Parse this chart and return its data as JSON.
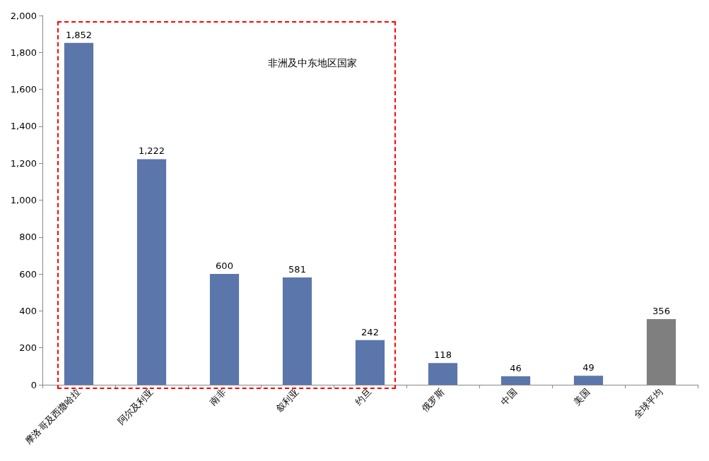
{
  "chart_data": {
    "type": "bar",
    "categories": [
      "摩洛哥及西撒哈拉",
      "阿尔及利亚",
      "南非",
      "叙利亚",
      "约旦",
      "俄罗斯",
      "中国",
      "美国",
      "全球平均"
    ],
    "values": [
      1852,
      1222,
      600,
      581,
      242,
      118,
      46,
      49,
      356
    ],
    "value_labels": [
      "1,852",
      "1,222",
      "600",
      "581",
      "242",
      "118",
      "46",
      "49",
      "356"
    ],
    "colors": [
      "#5b76aa",
      "#5b76aa",
      "#5b76aa",
      "#5b76aa",
      "#5b76aa",
      "#5b76aa",
      "#5b76aa",
      "#5b76aa",
      "#7f7f7f"
    ],
    "ylim": [
      0,
      2000
    ],
    "yticks": [
      0,
      200,
      400,
      600,
      800,
      {
        "value": 1000,
        "label": "1,000"
      },
      {
        "value": 1200,
        "label": "1,200"
      },
      {
        "value": 1400,
        "label": "1,400"
      },
      {
        "value": 1600,
        "label": "1,600"
      },
      {
        "value": 1800,
        "label": "1,800"
      },
      {
        "value": 2000,
        "label": "2,000"
      }
    ],
    "grid": false,
    "annotations": [
      "非洲及中东地区国家"
    ]
  }
}
